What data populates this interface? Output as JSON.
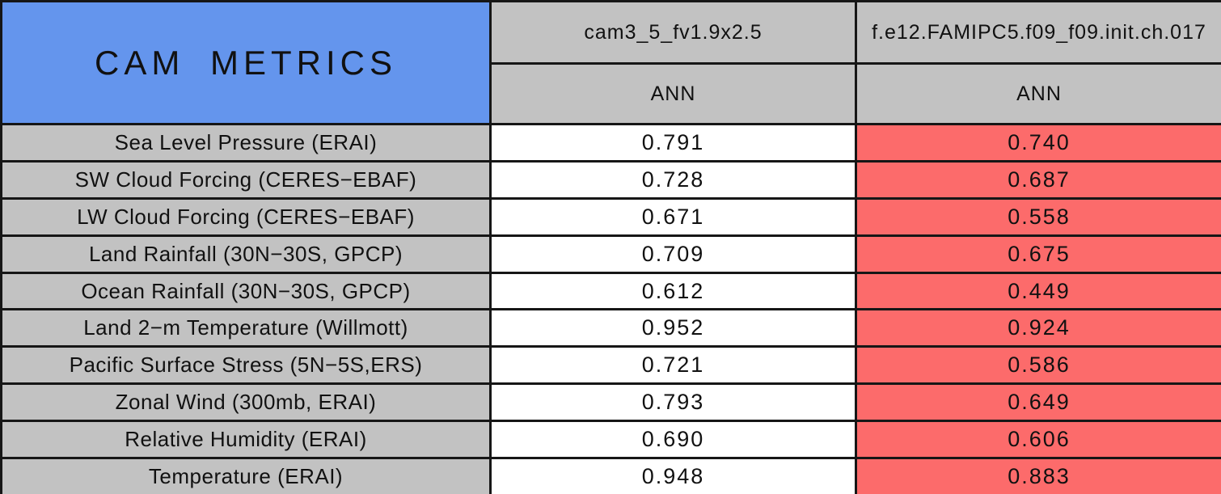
{
  "table": {
    "title": "CAM METRICS",
    "columns": [
      {
        "model": "cam3_5_fv1.9x2.5",
        "season": "ANN"
      },
      {
        "model": "f.e12.FAMIPC5.f09_f09.init.ch.017",
        "season": "ANN"
      }
    ],
    "rows": [
      {
        "label": "Sea Level Pressure (ERAI)",
        "control": "0.791",
        "test": "0.740"
      },
      {
        "label": "SW Cloud Forcing (CERES−EBAF)",
        "control": "0.728",
        "test": "0.687"
      },
      {
        "label": "LW Cloud Forcing (CERES−EBAF)",
        "control": "0.671",
        "test": "0.558"
      },
      {
        "label": "Land Rainfall (30N−30S, GPCP)",
        "control": "0.709",
        "test": "0.675"
      },
      {
        "label": "Ocean Rainfall (30N−30S, GPCP)",
        "control": "0.612",
        "test": "0.449"
      },
      {
        "label": "Land 2−m Temperature (Willmott)",
        "control": "0.952",
        "test": "0.924"
      },
      {
        "label": "Pacific Surface Stress (5N−5S,ERS)",
        "control": "0.721",
        "test": "0.586"
      },
      {
        "label": "Zonal Wind (300mb, ERAI)",
        "control": "0.793",
        "test": "0.649"
      },
      {
        "label": "Relative Humidity (ERAI)",
        "control": "0.690",
        "test": "0.606"
      },
      {
        "label": "Temperature (ERAI)",
        "control": "0.948",
        "test": "0.883"
      }
    ],
    "colors": {
      "title_bg": "#6495ED",
      "header_bg": "#C2C2C2",
      "label_bg": "#C2C2C2",
      "control_bg": "#FFFFFF",
      "test_bg": "#FC6B6B",
      "border": "#161616"
    }
  },
  "chart_data": {
    "type": "table",
    "title": "CAM METRICS",
    "categories": [
      "Sea Level Pressure (ERAI)",
      "SW Cloud Forcing (CERES-EBAF)",
      "LW Cloud Forcing (CERES-EBAF)",
      "Land Rainfall (30N-30S, GPCP)",
      "Ocean Rainfall (30N-30S, GPCP)",
      "Land 2-m Temperature (Willmott)",
      "Pacific Surface Stress (5N-5S,ERS)",
      "Zonal Wind (300mb, ERAI)",
      "Relative Humidity (ERAI)",
      "Temperature (ERAI)"
    ],
    "series": [
      {
        "name": "cam3_5_fv1.9x2.5 (ANN)",
        "values": [
          0.791,
          0.728,
          0.671,
          0.709,
          0.612,
          0.952,
          0.721,
          0.793,
          0.69,
          0.948
        ]
      },
      {
        "name": "f.e12.FAMIPC5.f09_f09.init.ch.017 (ANN)",
        "values": [
          0.74,
          0.687,
          0.558,
          0.675,
          0.449,
          0.924,
          0.586,
          0.649,
          0.606,
          0.883
        ]
      }
    ],
    "layout": {
      "highlight": "second series cells shaded red, first series cells white, labels gray, title cell blue"
    }
  }
}
